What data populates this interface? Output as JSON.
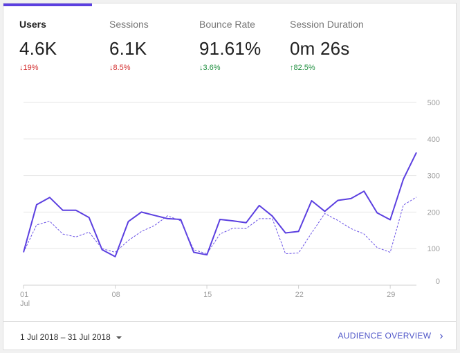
{
  "metrics": [
    {
      "label": "Users",
      "value": "4.6K",
      "delta_arrow": "↓",
      "delta": "19%",
      "trend": "down"
    },
    {
      "label": "Sessions",
      "value": "6.1K",
      "delta_arrow": "↓",
      "delta": "8.5%",
      "trend": "down"
    },
    {
      "label": "Bounce Rate",
      "value": "91.61%",
      "delta_arrow": "↓",
      "delta": "3.6%",
      "trend": "up"
    },
    {
      "label": "Session Duration",
      "value": "0m 26s",
      "delta_arrow": "↑",
      "delta": "82.5%",
      "trend": "up"
    }
  ],
  "colors": {
    "accent": "#5b3fe0",
    "line_current": "#5b3fe0",
    "line_previous": "#6a52e6",
    "down": "#d32f2f",
    "up": "#1e8e3e",
    "link": "#4f56c8"
  },
  "chart_data": {
    "type": "line",
    "x_day_start": 1,
    "xtick_labels": [
      {
        "day": 1,
        "label": "01",
        "sub": "Jul"
      },
      {
        "day": 8,
        "label": "08",
        "sub": ""
      },
      {
        "day": 15,
        "label": "15",
        "sub": ""
      },
      {
        "day": 22,
        "label": "22",
        "sub": ""
      },
      {
        "day": 29,
        "label": "29",
        "sub": ""
      }
    ],
    "yticks": [
      0,
      100,
      200,
      300,
      400,
      500
    ],
    "ylim": [
      0,
      500
    ],
    "grid": true,
    "series": [
      {
        "style": "solid",
        "values": [
          90,
          220,
          240,
          205,
          205,
          185,
          97,
          78,
          174,
          200,
          191,
          182,
          180,
          90,
          83,
          180,
          176,
          171,
          218,
          189,
          143,
          147,
          231,
          202,
          232,
          237,
          257,
          198,
          179,
          290,
          363
        ]
      },
      {
        "style": "dashed",
        "values": [
          90,
          165,
          175,
          140,
          132,
          145,
          100,
          90,
          122,
          147,
          163,
          190,
          176,
          97,
          86,
          140,
          156,
          155,
          182,
          182,
          86,
          88,
          143,
          196,
          177,
          155,
          140,
          103,
          90,
          219,
          241
        ]
      }
    ]
  },
  "footer": {
    "date_range": "1 Jul 2018 – 31 Jul 2018",
    "audience_link": "AUDIENCE OVERVIEW",
    "chevron": "›"
  }
}
